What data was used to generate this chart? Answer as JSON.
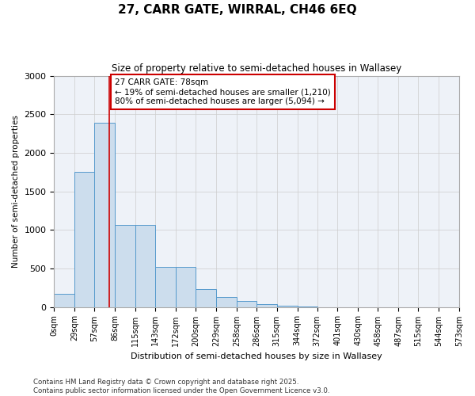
{
  "title_line1": "27, CARR GATE, WIRRAL, CH46 6EQ",
  "title_line2": "Size of property relative to semi-detached houses in Wallasey",
  "xlabel": "Distribution of semi-detached houses by size in Wallasey",
  "ylabel": "Number of semi-detached properties",
  "bar_color": "#ccdded",
  "bar_edge_color": "#5599cc",
  "grid_color": "#cccccc",
  "bg_color": "#eef2f8",
  "annotation_box_color": "#cc0000",
  "vline_color": "#cc0000",
  "annotation_title": "27 CARR GATE: 78sqm",
  "annotation_line1": "← 19% of semi-detached houses are smaller (1,210)",
  "annotation_line2": "80% of semi-detached houses are larger (5,094) →",
  "property_size": 78,
  "bins": [
    0,
    29,
    57,
    86,
    115,
    143,
    172,
    200,
    229,
    258,
    286,
    315,
    344,
    372,
    401,
    430,
    458,
    487,
    515,
    544,
    573
  ],
  "counts": [
    170,
    1750,
    2390,
    1060,
    1060,
    520,
    520,
    235,
    130,
    75,
    40,
    20,
    5,
    0,
    0,
    0,
    0,
    0,
    0,
    0
  ],
  "tick_labels": [
    "0sqm",
    "29sqm",
    "57sqm",
    "86sqm",
    "115sqm",
    "143sqm",
    "172sqm",
    "200sqm",
    "229sqm",
    "258sqm",
    "286sqm",
    "315sqm",
    "344sqm",
    "372sqm",
    "401sqm",
    "430sqm",
    "458sqm",
    "487sqm",
    "515sqm",
    "544sqm",
    "573sqm"
  ],
  "ylim": [
    0,
    3000
  ],
  "yticks": [
    0,
    500,
    1000,
    1500,
    2000,
    2500,
    3000
  ],
  "footnote1": "Contains HM Land Registry data © Crown copyright and database right 2025.",
  "footnote2": "Contains public sector information licensed under the Open Government Licence v3.0."
}
